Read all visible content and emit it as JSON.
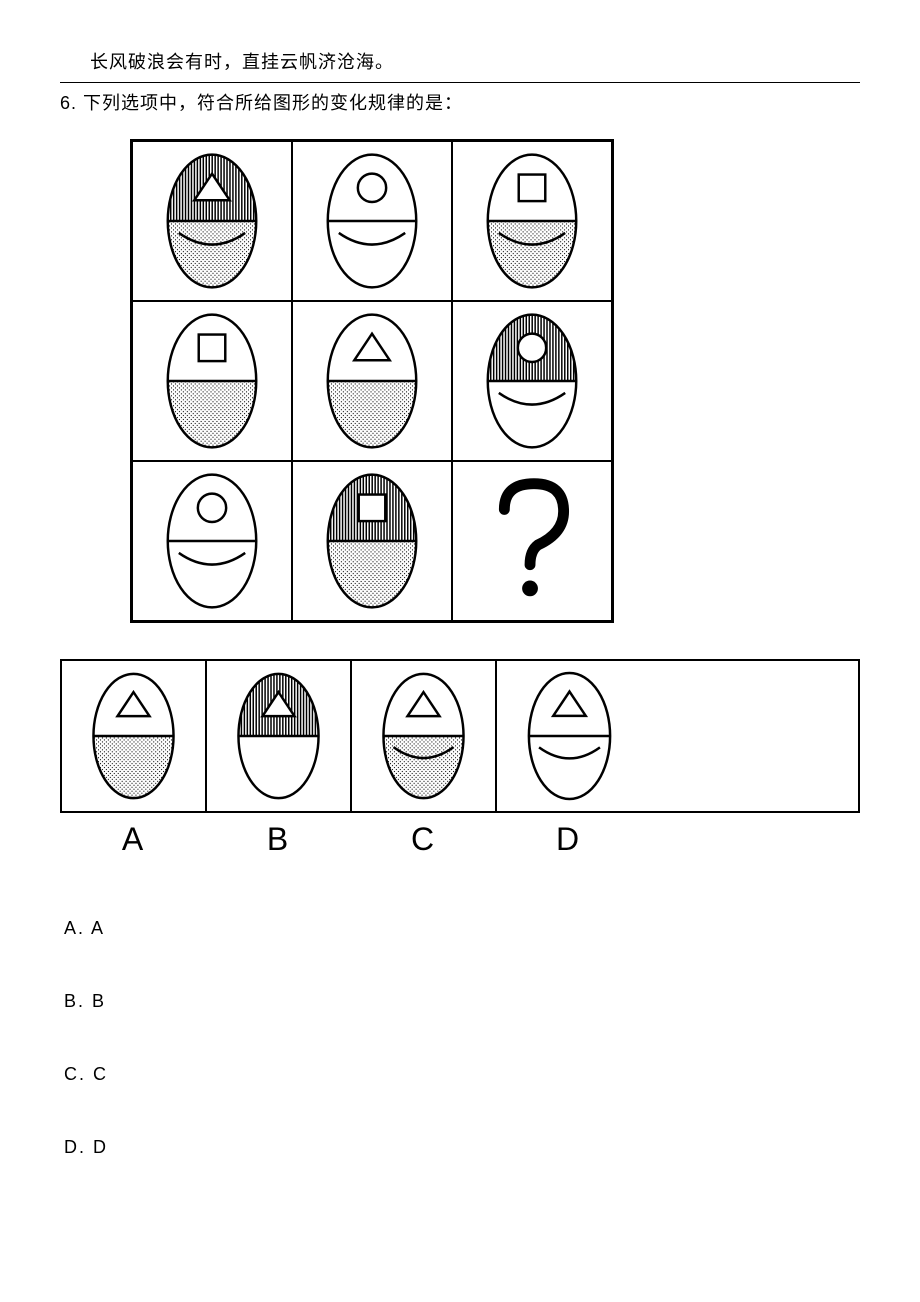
{
  "header_quote": "长风破浪会有时，直挂云帆济沧海。",
  "question": "6. 下列选项中，符合所给图形的变化规律的是：",
  "option_labels": [
    "A",
    "B",
    "C",
    "D"
  ],
  "answers": [
    "A. A",
    "B. B",
    "C. C",
    "D. D"
  ],
  "colors": {
    "stroke": "#000000",
    "bg": "#ffffff"
  },
  "grid_cells": [
    {
      "inner_shape": "triangle",
      "top_fill": "vlines",
      "bottom_fill": "dots",
      "arc": true
    },
    {
      "inner_shape": "circle",
      "top_fill": "none",
      "bottom_fill": "none",
      "arc": true
    },
    {
      "inner_shape": "square",
      "top_fill": "none",
      "bottom_fill": "dots",
      "arc": true
    },
    {
      "inner_shape": "square",
      "top_fill": "none",
      "bottom_fill": "dots",
      "arc": false
    },
    {
      "inner_shape": "triangle",
      "top_fill": "none",
      "bottom_fill": "dots",
      "arc": false
    },
    {
      "inner_shape": "circle",
      "top_fill": "vlines",
      "bottom_fill": "none",
      "arc": true
    },
    {
      "inner_shape": "circle",
      "top_fill": "none",
      "bottom_fill": "none",
      "arc": true
    },
    {
      "inner_shape": "square",
      "top_fill": "vlines",
      "bottom_fill": "dots",
      "arc": false
    },
    {
      "question_mark": true
    }
  ],
  "option_cells": [
    {
      "inner_shape": "triangle",
      "top_fill": "none",
      "bottom_fill": "dots",
      "arc": false
    },
    {
      "inner_shape": "triangle",
      "top_fill": "vlines",
      "bottom_fill": "none",
      "arc": false
    },
    {
      "inner_shape": "triangle",
      "top_fill": "none",
      "bottom_fill": "dots",
      "arc": true
    },
    {
      "inner_shape": "triangle",
      "top_fill": "none",
      "bottom_fill": "none",
      "arc": true
    }
  ]
}
